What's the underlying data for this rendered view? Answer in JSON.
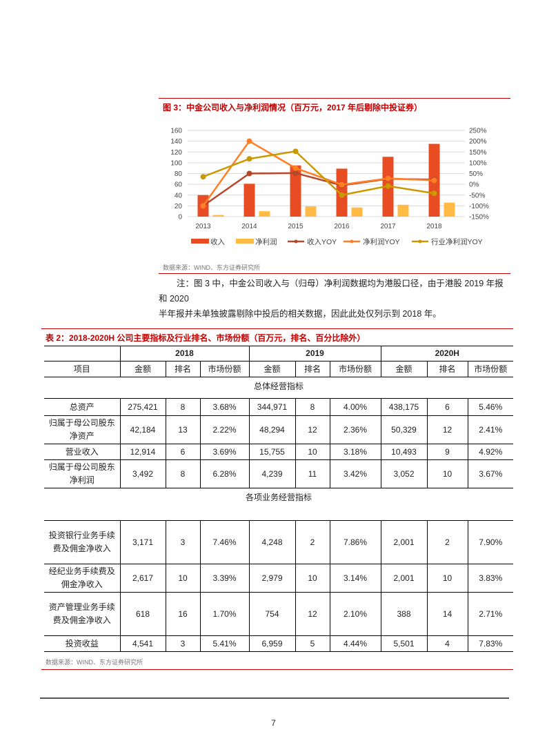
{
  "figure": {
    "title": "图 3：中金公司收入与净利润情况（百万元，2017 年后剔除中投证券）",
    "source": "数据来源：WIND、东方证券研究所"
  },
  "chart_data": {
    "type": "bar",
    "title": "中金公司收入与净利润情况（百万元，2017 年后剔除中投证券）",
    "categories": [
      "2013",
      "2014",
      "2015",
      "2016",
      "2017",
      "2018"
    ],
    "left_axis": {
      "ticks": [
        "0",
        "20",
        "40",
        "60",
        "80",
        "100",
        "120",
        "140",
        "160"
      ],
      "ylim": [
        0,
        160
      ]
    },
    "right_axis": {
      "ticks": [
        "-150%",
        "-100%",
        "-50%",
        "0%",
        "50%",
        "100%",
        "150%",
        "200%",
        "250%"
      ],
      "ylim": [
        -150,
        250
      ]
    },
    "series": [
      {
        "name": "收入",
        "type": "bar",
        "axis": "left",
        "color": "#e84c22",
        "values": [
          40,
          61,
          95,
          89,
          111,
          135
        ]
      },
      {
        "name": "净利润",
        "type": "bar",
        "axis": "left",
        "color": "#ffbb44",
        "values": [
          3,
          10,
          19,
          17,
          22,
          26
        ]
      },
      {
        "name": "收入YOY",
        "type": "line",
        "axis": "right",
        "color": "#b5472a",
        "values": [
          -100,
          50,
          52,
          -5,
          25,
          22
        ]
      },
      {
        "name": "净利润YOY",
        "type": "line",
        "axis": "right",
        "color": "#ff7f27",
        "values": [
          -100,
          200,
          75,
          -2,
          27,
          18
        ]
      },
      {
        "name": "行业净利润YOY",
        "type": "line",
        "axis": "right",
        "color": "#c89a00",
        "values": [
          35,
          118,
          153,
          -50,
          -8,
          -42
        ]
      }
    ],
    "legend_position": "bottom",
    "grid": true
  },
  "note": {
    "line1": "注：图 3 中，中金公司收入与（归母）净利润数据均为港股口径，由于港股 2019 年报和 2020",
    "line2": "半年报并未单独披露剔除中投后的相关数据，因此此处仅列示到 2018 年。"
  },
  "table": {
    "title": "表 2：2018-2020H 公司主要指标及行业排名、市场份额（百万元，排名、百分比除外）",
    "years": [
      "2018",
      "2019",
      "2020H"
    ],
    "col_headers": [
      "项目",
      "金额",
      "排名",
      "市场份额",
      "金额",
      "排名",
      "市场份额",
      "金额",
      "排名",
      "市场份额"
    ],
    "section1": "总体经营指标",
    "rows1": [
      {
        "item": "总资产",
        "v": [
          "275,421",
          "8",
          "3.68%",
          "344,971",
          "8",
          "4.00%",
          "438,175",
          "6",
          "5.46%"
        ]
      },
      {
        "item": "归属于母公司股东净资产",
        "v": [
          "42,184",
          "13",
          "2.22%",
          "48,294",
          "12",
          "2.36%",
          "50,329",
          "12",
          "2.41%"
        ]
      },
      {
        "item": "营业收入",
        "v": [
          "12,914",
          "6",
          "3.69%",
          "15,755",
          "10",
          "3.18%",
          "10,493",
          "9",
          "4.92%"
        ]
      },
      {
        "item": "归属于母公司股东净利润",
        "v": [
          "3,492",
          "8",
          "6.28%",
          "4,239",
          "11",
          "3.42%",
          "3,052",
          "10",
          "3.67%"
        ]
      }
    ],
    "section2": "各项业务经营指标",
    "rows2": [
      {
        "item": "投资银行业务手续费及佣金净收入",
        "v": [
          "3,171",
          "3",
          "7.46%",
          "4,248",
          "2",
          "7.86%",
          "2,001",
          "2",
          "7.90%"
        ]
      },
      {
        "item": "经纪业务手续费及佣金净收入",
        "v": [
          "2,617",
          "10",
          "3.39%",
          "2,979",
          "10",
          "3.14%",
          "2,001",
          "10",
          "3.83%"
        ]
      },
      {
        "item": "资产管理业务手续费及佣金净收入",
        "v": [
          "618",
          "16",
          "1.70%",
          "754",
          "12",
          "2.10%",
          "388",
          "14",
          "2.71%"
        ]
      },
      {
        "item": "投资收益",
        "v": [
          "4,541",
          "3",
          "5.41%",
          "6,959",
          "5",
          "4.44%",
          "5,501",
          "4",
          "7.83%"
        ]
      }
    ],
    "source": "数据来源：WIND、东方证券研究所"
  },
  "page": {
    "number": "7"
  },
  "colors": {
    "accent_red": "#c00000"
  }
}
